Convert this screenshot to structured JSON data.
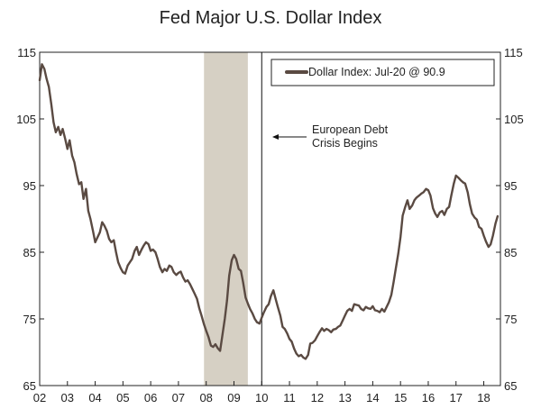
{
  "chart_data": {
    "type": "line",
    "title": "Fed Major U.S. Dollar Index",
    "xlabel": "",
    "ylabel": "",
    "xlim": [
      2002.0,
      2018.6
    ],
    "ylim": [
      65,
      115
    ],
    "yticks": [
      65,
      75,
      85,
      95,
      105,
      115
    ],
    "xticks": [
      {
        "year": 2002,
        "label": "02"
      },
      {
        "year": 2003,
        "label": "03"
      },
      {
        "year": 2004,
        "label": "04"
      },
      {
        "year": 2005,
        "label": "05"
      },
      {
        "year": 2006,
        "label": "06"
      },
      {
        "year": 2007,
        "label": "07"
      },
      {
        "year": 2008,
        "label": "08"
      },
      {
        "year": 2009,
        "label": "09"
      },
      {
        "year": 2010,
        "label": "10"
      },
      {
        "year": 2011,
        "label": "11"
      },
      {
        "year": 2012,
        "label": "12"
      },
      {
        "year": 2013,
        "label": "13"
      },
      {
        "year": 2014,
        "label": "14"
      },
      {
        "year": 2015,
        "label": "15"
      },
      {
        "year": 2016,
        "label": "16"
      },
      {
        "year": 2017,
        "label": "17"
      },
      {
        "year": 2018,
        "label": "18"
      }
    ],
    "legend": {
      "label": "Dollar Index: Jul-20 @ 90.9",
      "position": "top-right"
    },
    "recession": {
      "start": 2007.92,
      "end": 2009.5
    },
    "event": {
      "x": 2010.0,
      "label_line1": "European Debt",
      "label_line2": "Crisis Begins"
    },
    "series": [
      {
        "name": "Dollar Index",
        "color": "#5a4a42",
        "x": [
          2002.0,
          2002.08,
          2002.17,
          2002.25,
          2002.33,
          2002.42,
          2002.5,
          2002.58,
          2002.67,
          2002.75,
          2002.83,
          2002.92,
          2003.0,
          2003.08,
          2003.17,
          2003.25,
          2003.33,
          2003.42,
          2003.5,
          2003.58,
          2003.67,
          2003.75,
          2003.83,
          2003.92,
          2004.0,
          2004.08,
          2004.17,
          2004.25,
          2004.33,
          2004.42,
          2004.5,
          2004.58,
          2004.67,
          2004.75,
          2004.83,
          2004.92,
          2005.0,
          2005.08,
          2005.17,
          2005.25,
          2005.33,
          2005.42,
          2005.5,
          2005.58,
          2005.67,
          2005.75,
          2005.83,
          2005.92,
          2006.0,
          2006.08,
          2006.17,
          2006.25,
          2006.33,
          2006.42,
          2006.5,
          2006.58,
          2006.67,
          2006.75,
          2006.83,
          2006.92,
          2007.0,
          2007.08,
          2007.17,
          2007.25,
          2007.33,
          2007.42,
          2007.5,
          2007.58,
          2007.67,
          2007.75,
          2007.83,
          2007.92,
          2008.0,
          2008.08,
          2008.17,
          2008.25,
          2008.33,
          2008.42,
          2008.5,
          2008.58,
          2008.67,
          2008.75,
          2008.83,
          2008.92,
          2009.0,
          2009.08,
          2009.17,
          2009.25,
          2009.33,
          2009.42,
          2009.5,
          2009.58,
          2009.67,
          2009.75,
          2009.83,
          2009.92,
          2010.0,
          2010.08,
          2010.17,
          2010.25,
          2010.33,
          2010.42,
          2010.5,
          2010.58,
          2010.67,
          2010.75,
          2010.83,
          2010.92,
          2011.0,
          2011.08,
          2011.17,
          2011.25,
          2011.33,
          2011.42,
          2011.5,
          2011.58,
          2011.67,
          2011.75,
          2011.83,
          2011.92,
          2012.0,
          2012.08,
          2012.17,
          2012.25,
          2012.33,
          2012.42,
          2012.5,
          2012.58,
          2012.67,
          2012.75,
          2012.83,
          2012.92,
          2013.0,
          2013.08,
          2013.17,
          2013.25,
          2013.33,
          2013.42,
          2013.5,
          2013.58,
          2013.67,
          2013.75,
          2013.83,
          2013.92,
          2014.0,
          2014.08,
          2014.17,
          2014.25,
          2014.33,
          2014.42,
          2014.5,
          2014.58,
          2014.67,
          2014.75,
          2014.83,
          2014.92,
          2015.0,
          2015.08,
          2015.17,
          2015.25,
          2015.33,
          2015.42,
          2015.5,
          2015.58,
          2015.67,
          2015.75,
          2015.83,
          2015.92,
          2016.0,
          2016.08,
          2016.17,
          2016.25,
          2016.33,
          2016.42,
          2016.5,
          2016.58,
          2016.67,
          2016.75,
          2016.83,
          2016.92,
          2017.0,
          2017.08,
          2017.17,
          2017.25,
          2017.33,
          2017.42,
          2017.5,
          2017.58,
          2017.67,
          2017.75,
          2017.83,
          2017.92,
          2018.0,
          2018.08,
          2018.17,
          2018.25,
          2018.33,
          2018.42,
          2018.5
        ],
        "values": [
          110.8,
          113.2,
          112.5,
          111.0,
          109.8,
          107.2,
          104.5,
          103.0,
          103.8,
          102.6,
          103.5,
          102.0,
          100.5,
          101.8,
          99.5,
          98.5,
          96.8,
          95.2,
          95.5,
          93.0,
          94.5,
          91.2,
          90.0,
          88.2,
          86.5,
          87.2,
          88.0,
          89.5,
          89.0,
          88.2,
          87.0,
          86.5,
          86.8,
          85.0,
          83.5,
          82.6,
          82.0,
          81.8,
          83.0,
          83.5,
          84.0,
          85.2,
          85.8,
          84.6,
          85.4,
          86.0,
          86.5,
          86.2,
          85.2,
          85.4,
          85.0,
          84.0,
          82.8,
          82.0,
          82.5,
          82.2,
          83.0,
          82.8,
          82.0,
          81.6,
          81.9,
          82.1,
          81.2,
          80.6,
          80.8,
          80.2,
          79.5,
          78.8,
          78.0,
          76.6,
          75.5,
          74.2,
          73.2,
          72.3,
          71.0,
          70.8,
          71.2,
          70.6,
          70.2,
          72.5,
          75.0,
          77.8,
          81.5,
          83.8,
          84.6,
          84.0,
          82.5,
          82.2,
          80.5,
          78.2,
          77.3,
          76.5,
          75.8,
          75.0,
          74.5,
          74.3,
          75.2,
          76.0,
          76.8,
          77.2,
          78.4,
          79.3,
          78.0,
          76.8,
          75.5,
          73.8,
          73.5,
          72.8,
          72.0,
          71.6,
          70.5,
          69.8,
          69.4,
          69.6,
          69.2,
          69.0,
          69.6,
          71.3,
          71.4,
          71.8,
          72.4,
          73.0,
          73.6,
          73.2,
          73.5,
          73.3,
          73.0,
          73.4,
          73.5,
          73.8,
          74.0,
          74.8,
          75.5,
          76.2,
          76.5,
          76.2,
          77.2,
          77.1,
          77.0,
          76.5,
          76.3,
          76.8,
          76.6,
          76.5,
          76.9,
          76.3,
          76.2,
          76.0,
          76.5,
          76.1,
          76.8,
          77.5,
          78.6,
          80.5,
          82.5,
          84.8,
          87.3,
          90.5,
          91.8,
          92.8,
          91.5,
          92.0,
          92.8,
          93.2,
          93.5,
          93.8,
          94.0,
          94.5,
          94.3,
          93.5,
          91.6,
          90.8,
          90.3,
          91.0,
          91.2,
          90.6,
          91.5,
          91.8,
          93.5,
          95.3,
          96.5,
          96.2,
          95.8,
          95.5,
          95.3,
          94.0,
          92.2,
          90.8,
          90.2,
          89.9,
          88.8,
          88.5,
          87.5,
          86.6,
          85.8,
          86.2,
          87.5,
          89.3,
          90.4
        ]
      }
    ]
  }
}
